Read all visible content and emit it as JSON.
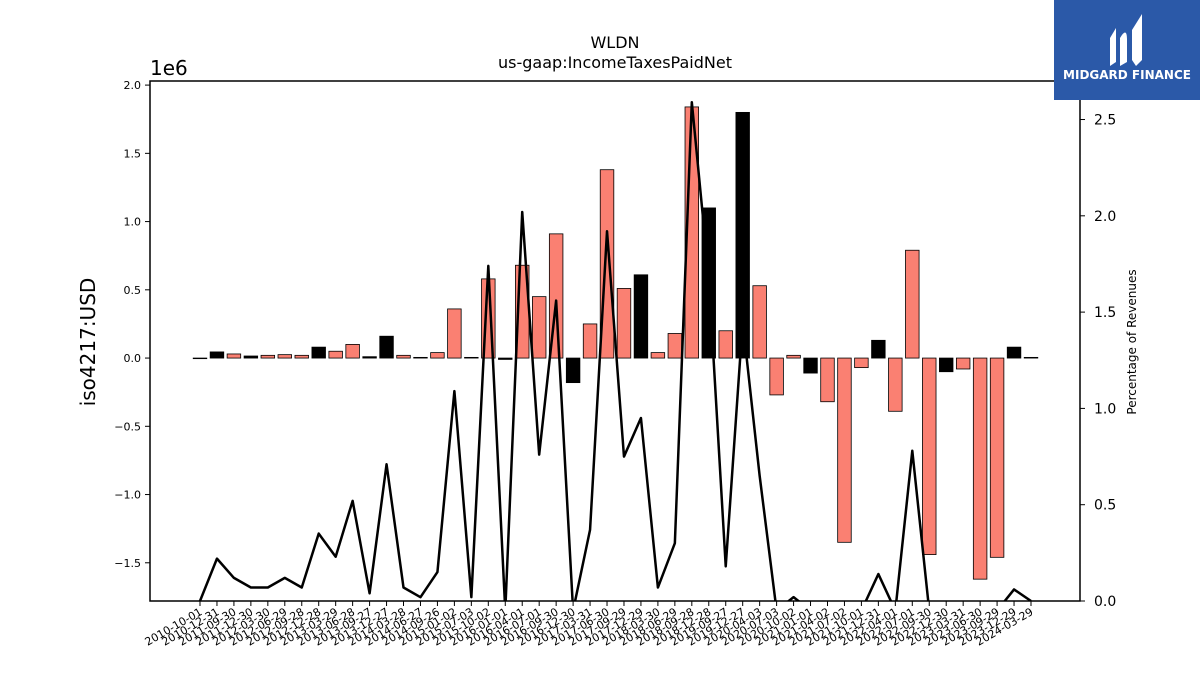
{
  "chart_data": {
    "type": "bar",
    "title": "WLDN",
    "subtitle": "us-gaap:IncomeTaxesPaidNet",
    "ylabel": "iso4217:USD",
    "y_offset_label": "1e6",
    "y2label": "Percentage of Revenues",
    "ylim": [
      -1.78,
      2.03
    ],
    "y2lim": [
      0.0,
      2.7
    ],
    "yticks": [
      "−1.5",
      "−1.0",
      "−0.5",
      "0.0",
      "0.5",
      "1.0",
      "1.5",
      "2.0"
    ],
    "y2ticks": [
      "0.0",
      "0.5",
      "1.0",
      "1.5",
      "2.0",
      "2.5"
    ],
    "x_tick_labels": [
      "2010-10-01",
      "2010-12-31",
      "2011-09-30",
      "2011-12-30",
      "2012-03-30",
      "2012-06-29",
      "2012-09-28",
      "2012-12-28",
      "2013-03-29",
      "2013-06-28",
      "2013-09-27",
      "2013-12-27",
      "2014-03-28",
      "2014-06-27",
      "2014-09-26",
      "2015-01-02",
      "2015-07-03",
      "2015-10-02",
      "2016-01-01",
      "2016-04-01",
      "2016-07-01",
      "2016-09-30",
      "2016-12-30",
      "2017-03-31",
      "2017-06-30",
      "2017-09-29",
      "2017-12-29",
      "2018-03-30",
      "2018-06-29",
      "2018-09-28",
      "2018-12-28",
      "2019-09-27",
      "2019-12-27",
      "2020-04-03",
      "2020-07-03",
      "2020-10-02",
      "2021-01-01",
      "2021-04-02",
      "2021-07-02",
      "2021-10-01",
      "2021-12-31",
      "2022-04-01",
      "2022-07-01",
      "2022-09-30",
      "2022-12-30",
      "2023-03-31",
      "2023-06-30",
      "2023-09-29",
      "2023-12-29",
      "2024-03-29"
    ],
    "series": [
      {
        "type": "bar",
        "values": [
          0.0,
          0.045,
          0.03,
          0.015,
          0.02,
          0.025,
          0.02,
          0.08,
          0.05,
          0.1,
          0.01,
          0.16,
          0.02,
          0.005,
          0.04,
          0.36,
          0.005,
          0.58,
          -0.01,
          0.68,
          0.45,
          0.91,
          -0.18,
          0.25,
          1.38,
          0.51,
          0.61,
          0.04,
          0.18,
          1.84,
          1.1,
          0.2,
          1.8,
          0.53,
          -0.27,
          0.02,
          -0.11,
          -0.32,
          -1.35,
          -0.07,
          0.13,
          -0.39,
          0.79,
          -1.44,
          -0.1,
          -0.08,
          -1.62,
          -1.46,
          0.08,
          0.005
        ],
        "colors": [
          "#000000",
          "#000000",
          "#fa8072",
          "#000000",
          "#fa8072",
          "#fa8072",
          "#fa8072",
          "#000000",
          "#fa8072",
          "#fa8072",
          "#000000",
          "#000000",
          "#fa8072",
          "#fa8072",
          "#fa8072",
          "#fa8072",
          "#000000",
          "#fa8072",
          "#000000",
          "#fa8072",
          "#fa8072",
          "#fa8072",
          "#000000",
          "#fa8072",
          "#fa8072",
          "#fa8072",
          "#000000",
          "#fa8072",
          "#fa8072",
          "#fa8072",
          "#000000",
          "#fa8072",
          "#000000",
          "#fa8072",
          "#fa8072",
          "#fa8072",
          "#000000",
          "#fa8072",
          "#fa8072",
          "#fa8072",
          "#000000",
          "#fa8072",
          "#fa8072",
          "#fa8072",
          "#000000",
          "#fa8072",
          "#fa8072",
          "#fa8072",
          "#000000",
          "#000000"
        ]
      },
      {
        "type": "line",
        "axis": "right",
        "color": "#000000",
        "values": [
          0.0,
          0.22,
          0.12,
          0.07,
          0.07,
          0.12,
          0.07,
          0.35,
          0.23,
          0.52,
          0.04,
          0.71,
          0.07,
          0.02,
          0.15,
          1.09,
          0.02,
          1.74,
          -0.05,
          2.02,
          0.76,
          1.56,
          -0.05,
          0.37,
          1.92,
          0.75,
          0.95,
          0.07,
          0.3,
          2.59,
          1.68,
          0.18,
          1.45,
          0.65,
          -0.05,
          0.02,
          -0.05,
          -0.05,
          -0.05,
          -0.05,
          0.14,
          -0.05,
          0.78,
          -0.05,
          -0.05,
          -0.05,
          -0.05,
          -0.05,
          0.06,
          0.0
        ]
      }
    ]
  },
  "logo": {
    "text": "MIDGARD FINANCE",
    "bg_color": "#2b59a8"
  }
}
